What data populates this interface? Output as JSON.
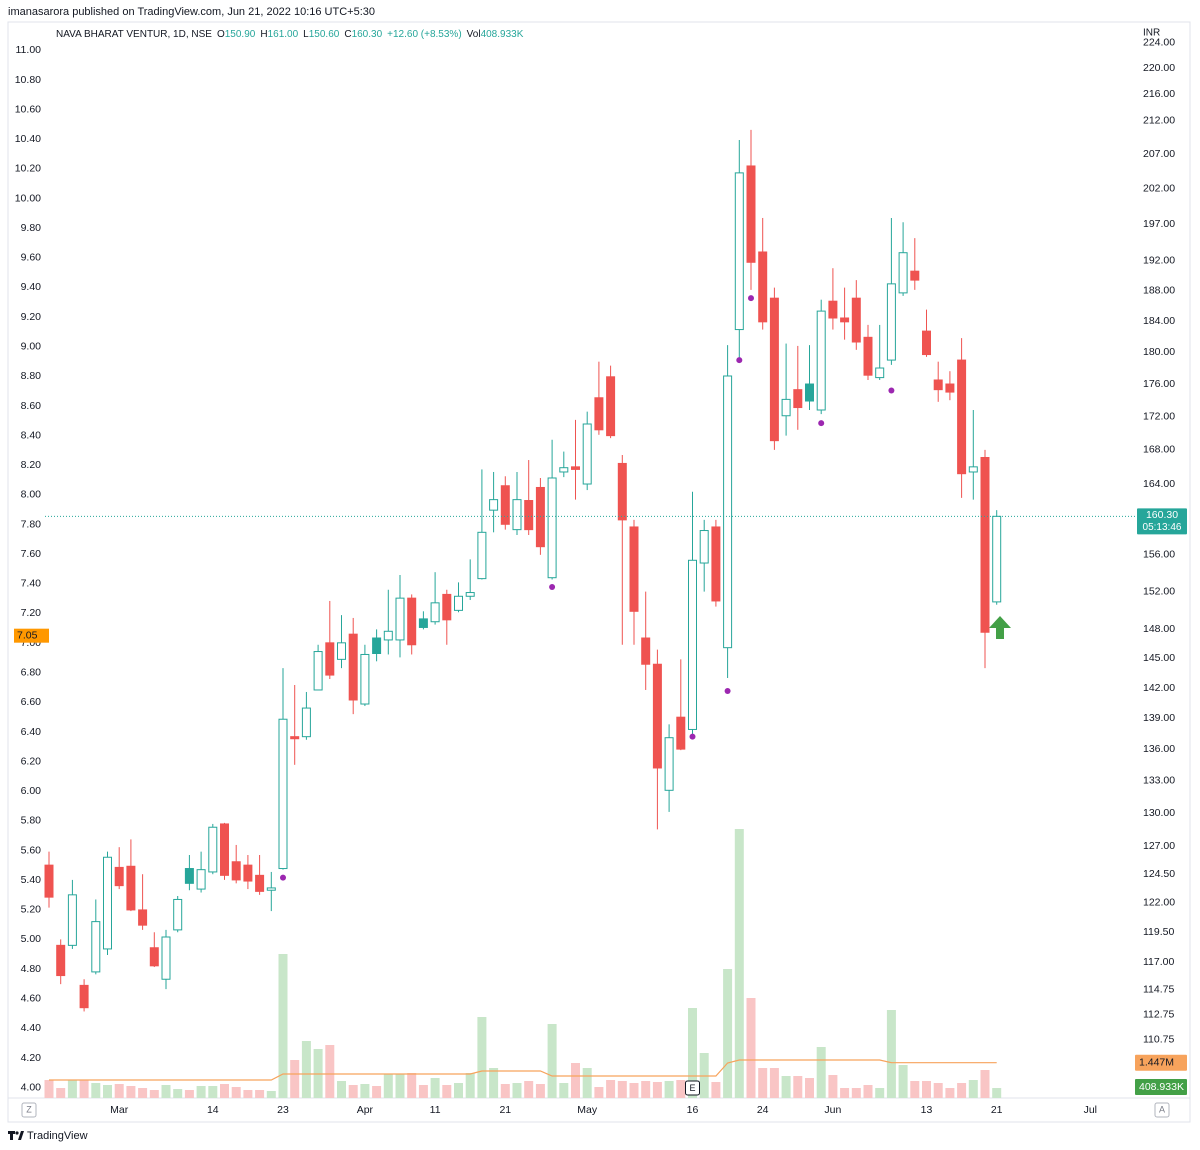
{
  "header": "imanasarora published on TradingView.com, Jun 21, 2022 10:16 UTC+5:30",
  "footer": "TradingView",
  "chart_data": {
    "type": "candlestick",
    "currency": "INR",
    "legend": {
      "name": "NAVA BHARAT VENTUR, 1D, NSE",
      "items": [
        {
          "key": "O",
          "text": "150.90"
        },
        {
          "key": "H",
          "text": "161.00"
        },
        {
          "key": "L",
          "text": "150.60"
        },
        {
          "key": "C",
          "text": "160.30"
        }
      ],
      "change": "+12.60 (+8.53%)",
      "volume": {
        "key": "Vol",
        "text": "408.933K"
      }
    },
    "categories": [
      null,
      null,
      null,
      null,
      null,
      null,
      "Mar",
      null,
      null,
      null,
      null,
      null,
      null,
      null,
      "14",
      null,
      null,
      null,
      null,
      null,
      "23",
      null,
      null,
      null,
      null,
      null,
      null,
      "Apr",
      null,
      null,
      null,
      null,
      null,
      "11",
      null,
      null,
      null,
      null,
      null,
      "21",
      null,
      null,
      null,
      null,
      null,
      null,
      "May",
      null,
      null,
      null,
      null,
      null,
      null,
      null,
      null,
      "16",
      null,
      null,
      null,
      null,
      null,
      "24",
      null,
      null,
      null,
      null,
      null,
      "Jun",
      null,
      null,
      null,
      null,
      null,
      null,
      null,
      "13",
      null,
      null,
      null,
      null,
      null,
      "21",
      null,
      null,
      null,
      null,
      null,
      null,
      null,
      "Jul"
    ],
    "open": [
      125.3,
      118.4,
      118.4,
      115.1,
      116.2,
      118.1,
      125.1,
      125.2,
      121.4,
      118.2,
      115.6,
      119.7,
      125.0,
      123.2,
      124.7,
      129.0,
      125.6,
      125.3,
      124.4,
      123.1,
      125.0,
      137.2,
      137.2,
      141.8,
      146.6,
      144.9,
      147.5,
      140.4,
      147.1,
      146.9,
      146.9,
      151.3,
      149.1,
      148.8,
      151.7,
      150.0,
      151.5,
      153.4,
      161.0,
      163.8,
      158.8,
      162.1,
      163.6,
      153.5,
      165.4,
      166.0,
      164.0,
      174.3,
      176.9,
      166.4,
      159.1,
      147.1,
      144.4,
      132.1,
      139.1,
      137.9,
      155.1,
      159.1,
      146.1,
      182.9,
      205.3,
      193.2,
      187.0,
      172.1,
      175.3,
      176.0,
      172.8,
      186.6,
      184.4,
      187.0,
      181.9,
      176.8,
      179.0,
      187.7,
      190.6,
      182.7,
      176.5,
      176.0,
      179.0,
      165.4,
      167.1,
      150.9,
      null,
      null,
      null,
      null,
      null,
      null,
      null,
      null
    ],
    "high": [
      126.5,
      118.9,
      124.0,
      115.6,
      122.3,
      126.5,
      126.9,
      127.6,
      124.5,
      119.5,
      119.7,
      122.6,
      126.2,
      126.5,
      129.0,
      129.1,
      127.1,
      126.2,
      126.2,
      124.7,
      144.0,
      142.3,
      141.6,
      146.4,
      151.0,
      149.5,
      149.2,
      146.4,
      148.0,
      152.2,
      153.8,
      151.7,
      149.9,
      154.1,
      152.2,
      153.0,
      155.5,
      165.7,
      165.4,
      164.9,
      165.4,
      166.8,
      164.7,
      169.2,
      167.8,
      171.6,
      172.6,
      178.8,
      178.3,
      167.4,
      159.9,
      152.0,
      145.9,
      138.4,
      144.9,
      163.1,
      159.9,
      159.9,
      180.9,
      209.1,
      210.6,
      197.9,
      188.4,
      181.1,
      180.8,
      180.9,
      186.8,
      191.0,
      188.4,
      189.4,
      183.5,
      183.5,
      197.9,
      197.3,
      195.1,
      185.5,
      178.8,
      177.6,
      181.8,
      172.8,
      168.0,
      161.0,
      null,
      null,
      null,
      null,
      null,
      null,
      null,
      null
    ],
    "low": [
      121.6,
      115.2,
      118.1,
      113.0,
      116.0,
      117.6,
      123.2,
      121.3,
      119.7,
      116.6,
      114.8,
      119.5,
      123.1,
      122.9,
      124.5,
      124.0,
      123.7,
      123.2,
      122.7,
      121.3,
      124.9,
      134.5,
      136.9,
      141.8,
      142.9,
      144.0,
      139.4,
      140.2,
      144.7,
      145.4,
      145.1,
      145.4,
      148.0,
      148.5,
      146.4,
      149.8,
      151.1,
      153.3,
      158.5,
      158.8,
      158.2,
      158.2,
      156.0,
      153.3,
      164.8,
      162.2,
      163.3,
      169.8,
      169.4,
      146.4,
      146.4,
      141.8,
      128.5,
      130.1,
      135.9,
      137.4,
      152.0,
      150.4,
      143.0,
      179.0,
      188.1,
      182.9,
      168.0,
      169.7,
      170.4,
      172.8,
      172.3,
      182.9,
      181.6,
      180.3,
      176.5,
      176.5,
      178.4,
      187.3,
      188.1,
      179.4,
      173.8,
      174.0,
      162.4,
      162.2,
      144.0,
      150.6,
      null,
      null,
      null,
      null,
      null,
      null,
      null,
      null
    ],
    "close": [
      122.5,
      115.9,
      122.7,
      113.3,
      120.4,
      126.0,
      123.5,
      121.4,
      120.1,
      116.7,
      119.1,
      122.3,
      123.7,
      124.9,
      128.7,
      124.4,
      124.0,
      123.9,
      123.0,
      123.3,
      138.9,
      137.0,
      140.0,
      145.7,
      143.3,
      146.6,
      140.8,
      145.4,
      145.5,
      147.8,
      151.3,
      146.4,
      148.2,
      150.8,
      149.0,
      151.5,
      151.9,
      158.5,
      162.2,
      159.4,
      162.2,
      158.8,
      156.9,
      164.7,
      165.9,
      165.7,
      171.1,
      170.4,
      169.7,
      159.9,
      149.9,
      144.4,
      134.2,
      137.1,
      136.0,
      155.4,
      158.7,
      151.0,
      177.0,
      204.3,
      191.8,
      183.9,
      169.1,
      174.1,
      173.1,
      173.9,
      185.3,
      184.4,
      183.9,
      181.3,
      177.1,
      178.0,
      188.9,
      193.1,
      189.4,
      179.7,
      175.3,
      175.0,
      165.2,
      166.0,
      147.7,
      160.3,
      null,
      null,
      null,
      null,
      null,
      null,
      null,
      null
    ],
    "volume": [
      738000,
      410000,
      738000,
      738000,
      615000,
      533000,
      574000,
      492000,
      410000,
      328000,
      533000,
      369000,
      328000,
      492000,
      492000,
      574000,
      451000,
      328000,
      328000,
      287000,
      5904000,
      1558000,
      2337000,
      2009000,
      2173000,
      697000,
      533000,
      574000,
      492000,
      984000,
      984000,
      1025000,
      533000,
      820000,
      533000,
      615000,
      1025000,
      3321000,
      1230000,
      574000,
      615000,
      697000,
      574000,
      3034000,
      615000,
      1435000,
      1230000,
      451000,
      738000,
      697000,
      615000,
      697000,
      656000,
      697000,
      738000,
      3690000,
      1845000,
      656000,
      5289000,
      11029000,
      4100000,
      1230000,
      1230000,
      902000,
      902000,
      820000,
      2091000,
      943000,
      410000,
      410000,
      533000,
      410000,
      3608000,
      1353000,
      697000,
      697000,
      615000,
      410000,
      615000,
      738000,
      1148000,
      408933,
      null,
      null,
      null,
      null,
      null,
      null,
      null,
      null
    ],
    "volume_ma": [
      738000,
      738000,
      738000,
      738000,
      738000,
      738000,
      738000,
      738000,
      738000,
      738000,
      738000,
      738000,
      738000,
      738000,
      738000,
      738000,
      738000,
      738000,
      738000,
      738000,
      984000,
      984000,
      984000,
      984000,
      984000,
      984000,
      984000,
      984000,
      984000,
      984000,
      984000,
      984000,
      984000,
      984000,
      984000,
      984000,
      984000,
      1107000,
      1107000,
      1107000,
      1107000,
      1107000,
      1107000,
      902000,
      902000,
      902000,
      902000,
      902000,
      902000,
      902000,
      902000,
      902000,
      902000,
      902000,
      902000,
      902000,
      902000,
      902000,
      1435000,
      1558000,
      1558000,
      1558000,
      1558000,
      1558000,
      1558000,
      1558000,
      1558000,
      1558000,
      1558000,
      1558000,
      1558000,
      1558000,
      1447000,
      1447000,
      1447000,
      1447000,
      1447000,
      1447000,
      1447000,
      1447000,
      1447000,
      1447000,
      null,
      null,
      null,
      null,
      null,
      null,
      null,
      null
    ],
    "volume_label": "408.933K",
    "volume_ma_label": "1.447M",
    "last_close_label": "160.30",
    "countdown": "05:13:46",
    "markers": {
      "x": [
        20,
        43,
        55,
        58,
        59,
        60,
        66,
        72
      ],
      "values": [
        124.2,
        152.5,
        137.2,
        141.7,
        179.0,
        187.0,
        171.2,
        175.2
      ],
      "color": "#9c27b0"
    },
    "earnings_marker": {
      "x": 55,
      "label": "E"
    },
    "scale_buttons": {
      "left": "Z",
      "right": "A"
    },
    "log": true,
    "grid": false,
    "ylim": [
      106.3,
      224.4
    ],
    "yticks": [
      {
        "value": 224,
        "label": "224.00"
      },
      {
        "value": 220,
        "label": "220.00"
      },
      {
        "value": 216,
        "label": "216.00"
      },
      {
        "value": 212,
        "label": "212.00"
      },
      {
        "value": 207,
        "label": "207.00"
      },
      {
        "value": 202,
        "label": "202.00"
      },
      {
        "value": 197,
        "label": "197.00"
      },
      {
        "value": 192,
        "label": "192.00"
      },
      {
        "value": 188,
        "label": "188.00"
      },
      {
        "value": 184,
        "label": "184.00"
      },
      {
        "value": 180,
        "label": "180.00"
      },
      {
        "value": 176,
        "label": "176.00"
      },
      {
        "value": 172,
        "label": "172.00"
      },
      {
        "value": 168,
        "label": "168.00"
      },
      {
        "value": 164,
        "label": "164.00"
      },
      {
        "value": 156,
        "label": "156.00"
      },
      {
        "value": 152,
        "label": "152.00"
      },
      {
        "value": 148,
        "label": "148.00"
      },
      {
        "value": 145,
        "label": "145.00"
      },
      {
        "value": 142,
        "label": "142.00"
      },
      {
        "value": 139,
        "label": "139.00"
      },
      {
        "value": 136,
        "label": "136.00"
      },
      {
        "value": 133,
        "label": "133.00"
      },
      {
        "value": 130,
        "label": "130.00"
      },
      {
        "value": 127,
        "label": "127.00"
      },
      {
        "value": 124.5,
        "label": "124.50"
      },
      {
        "value": 122,
        "label": "122.00"
      },
      {
        "value": 119.5,
        "label": "119.50"
      },
      {
        "value": 117,
        "label": "117.00"
      },
      {
        "value": 114.75,
        "label": "114.75"
      },
      {
        "value": 112.75,
        "label": "112.75"
      },
      {
        "value": 110.75,
        "label": "110.75"
      }
    ],
    "y2lim": [
      3.93,
      11.07
    ],
    "y2ticks": [
      {
        "value": 4,
        "label": "4.00"
      },
      {
        "value": 4.2,
        "label": "4.20"
      },
      {
        "value": 4.4,
        "label": "4.40"
      },
      {
        "value": 4.6,
        "label": "4.60"
      },
      {
        "value": 4.8,
        "label": "4.80"
      },
      {
        "value": 5,
        "label": "5.00"
      },
      {
        "value": 5.2,
        "label": "5.20"
      },
      {
        "value": 5.4,
        "label": "5.40"
      },
      {
        "value": 5.6,
        "label": "5.60"
      },
      {
        "value": 5.8,
        "label": "5.80"
      },
      {
        "value": 6,
        "label": "6.00"
      },
      {
        "value": 6.2,
        "label": "6.20"
      },
      {
        "value": 6.4,
        "label": "6.40"
      },
      {
        "value": 6.6,
        "label": "6.60"
      },
      {
        "value": 6.8,
        "label": "6.80"
      },
      {
        "value": 7,
        "label": "7.00"
      },
      {
        "value": 7.2,
        "label": "7.20"
      },
      {
        "value": 7.4,
        "label": "7.40"
      },
      {
        "value": 7.6,
        "label": "7.60"
      },
      {
        "value": 7.8,
        "label": "7.80"
      },
      {
        "value": 8,
        "label": "8.00"
      },
      {
        "value": 8.2,
        "label": "8.20"
      },
      {
        "value": 8.4,
        "label": "8.40"
      },
      {
        "value": 8.6,
        "label": "8.60"
      },
      {
        "value": 8.8,
        "label": "8.80"
      },
      {
        "value": 9,
        "label": "9.00"
      },
      {
        "value": 9.2,
        "label": "9.20"
      },
      {
        "value": 9.4,
        "label": "9.40"
      },
      {
        "value": 9.6,
        "label": "9.60"
      },
      {
        "value": 9.8,
        "label": "9.80"
      },
      {
        "value": 10,
        "label": "10.00"
      },
      {
        "value": 10.2,
        "label": "10.20"
      },
      {
        "value": 10.4,
        "label": "10.40"
      },
      {
        "value": 10.6,
        "label": "10.60"
      },
      {
        "value": 10.8,
        "label": "10.80"
      },
      {
        "value": 11,
        "label": "11.00"
      }
    ],
    "y2_marker": {
      "value": 7.05,
      "color": "#ff9800"
    },
    "up_color": "#26a69a",
    "down_color": "#ef5350",
    "volume_up_color": "#c8e6c9",
    "volume_down_color": "#f9c5c5",
    "ma_color": "#f7a35c"
  }
}
